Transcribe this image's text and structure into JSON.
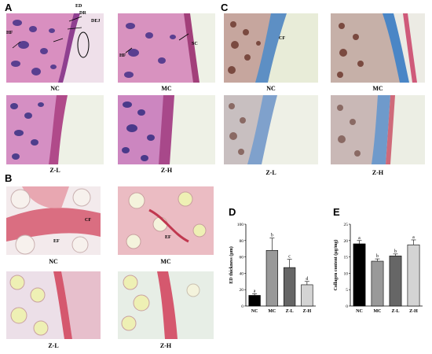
{
  "panels": {
    "A": {
      "letter": "A",
      "captions": [
        "NC",
        "MC",
        "Z-L",
        "Z-H"
      ],
      "labels": {
        "ed": "ED",
        "dr": "DR",
        "dej": "DEJ",
        "hf": "HF",
        "hf2": "HF",
        "sc": "SC"
      }
    },
    "B": {
      "letter": "B",
      "captions": [
        "NC",
        "MC",
        "Z-L",
        "Z-H"
      ],
      "labels": {
        "cf": "CF",
        "ef": "EF",
        "ef2": "EF"
      }
    },
    "C": {
      "letter": "C",
      "captions": [
        "NC",
        "MC",
        "Z-L",
        "Z-H"
      ],
      "labels": {
        "cf": "CF"
      }
    },
    "D": {
      "letter": "D"
    },
    "E": {
      "letter": "E"
    }
  },
  "colors": {
    "he_bg": "#efe0ea",
    "he_tissue": "#d98fc0",
    "he_nuclei": "#5a3f90",
    "mt_bg": "#e8ecd8",
    "mt_tissue": "#c7b8b0",
    "mt_blue": "#5d8fc4",
    "vg_bg": "#f4ecee",
    "vg_fiber": "#d5586e",
    "vg_follicle": "#e7e9b0"
  },
  "chart_data": [
    {
      "type": "bar",
      "panel": "D",
      "categories": [
        "NC",
        "MC",
        "Z-L",
        "Z-H"
      ],
      "values": [
        13,
        68,
        47,
        26
      ],
      "errors": [
        2,
        15,
        10,
        4
      ],
      "letters": [
        "a",
        "b",
        "c",
        "d"
      ],
      "bar_colors": [
        "#000000",
        "#999999",
        "#666666",
        "#d4d4d4"
      ],
      "ylabel": "ED thickness (μm)",
      "ylim": [
        0,
        100
      ],
      "yticks": [
        0,
        20,
        40,
        60,
        80,
        100
      ]
    },
    {
      "type": "bar",
      "panel": "E",
      "categories": [
        "NC",
        "MC",
        "Z-L",
        "Z-H"
      ],
      "values": [
        19,
        13.7,
        15.3,
        18.7
      ],
      "errors": [
        1,
        0.7,
        0.6,
        1.5
      ],
      "letters": [
        "a",
        "b",
        "b",
        "a"
      ],
      "bar_colors": [
        "#000000",
        "#999999",
        "#666666",
        "#d4d4d4"
      ],
      "ylabel": "Collagen content (μg/mg)",
      "ylim": [
        0,
        25
      ],
      "yticks": [
        0,
        5,
        10,
        15,
        20,
        25
      ]
    }
  ]
}
